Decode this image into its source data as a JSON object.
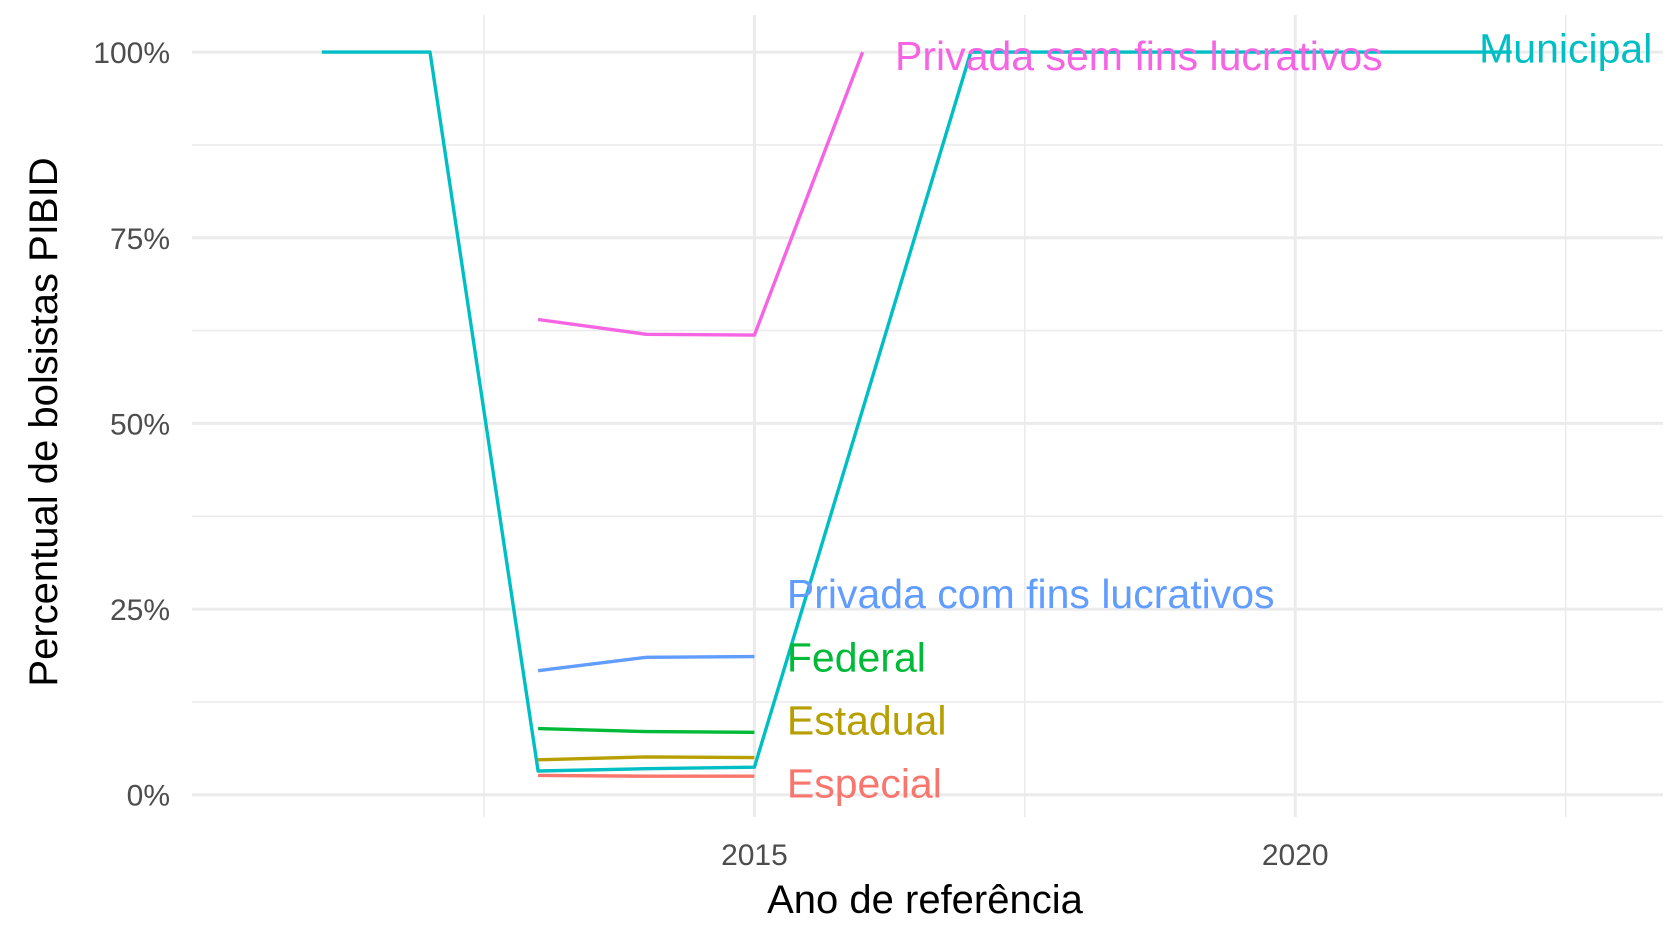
{
  "chart_data": {
    "type": "line",
    "title": "",
    "xlabel": "Ano de referência",
    "ylabel": "Percentual de bolsistas PIBID",
    "xlim": [
      2009.8,
      2023.4
    ],
    "ylim": [
      -0.03,
      1.05
    ],
    "x_ticks": [
      2015,
      2020
    ],
    "x_minor_ticks": [
      2012.5,
      2017.5,
      2022.5
    ],
    "y_ticks": [
      0,
      0.25,
      0.5,
      0.75,
      1.0
    ],
    "y_tick_labels": [
      "0%",
      "25%",
      "50%",
      "75%",
      "100%"
    ],
    "y_minor_ticks": [
      0.125,
      0.375,
      0.625,
      0.875
    ],
    "grid": true,
    "legend": "direct labels at line ends",
    "series": [
      {
        "name": "Especial",
        "color": "#F8766D",
        "label_x": 2015.3,
        "label_y": 0.015,
        "points": [
          [
            2013,
            0.026
          ],
          [
            2014,
            0.025
          ],
          [
            2015,
            0.025
          ]
        ]
      },
      {
        "name": "Estadual",
        "color": "#B79F00",
        "label_x": 2015.3,
        "label_y": 0.1,
        "points": [
          [
            2013,
            0.047
          ],
          [
            2014,
            0.051
          ],
          [
            2015,
            0.05
          ]
        ]
      },
      {
        "name": "Federal",
        "color": "#00BA38",
        "label_x": 2015.3,
        "label_y": 0.185,
        "points": [
          [
            2013,
            0.089
          ],
          [
            2014,
            0.085
          ],
          [
            2015,
            0.084
          ]
        ]
      },
      {
        "name": "Privada com fins lucrativos",
        "color": "#619CFF",
        "label_x": 2015.3,
        "label_y": 0.27,
        "points": [
          [
            2013,
            0.167
          ],
          [
            2014,
            0.185
          ],
          [
            2015,
            0.186
          ]
        ]
      },
      {
        "name": "Privada sem fins lucrativos",
        "color": "#F564E3",
        "label_x": 2016.3,
        "label_y": 0.995,
        "points": [
          [
            2013,
            0.64
          ],
          [
            2014,
            0.62
          ],
          [
            2015,
            0.619
          ],
          [
            2016,
            1.0
          ]
        ]
      },
      {
        "name": "Municipal",
        "color": "#00BFC4",
        "label_x": 2021.7,
        "label_y": 1.005,
        "points": [
          [
            2011,
            1.0
          ],
          [
            2012,
            1.0
          ],
          [
            2013,
            0.032
          ],
          [
            2014,
            0.035
          ],
          [
            2015,
            0.037
          ],
          [
            2017,
            1.0
          ],
          [
            2018,
            1.0
          ],
          [
            2019,
            1.0
          ],
          [
            2020,
            1.0
          ],
          [
            2021,
            1.0
          ],
          [
            2022,
            1.0
          ]
        ]
      }
    ]
  }
}
